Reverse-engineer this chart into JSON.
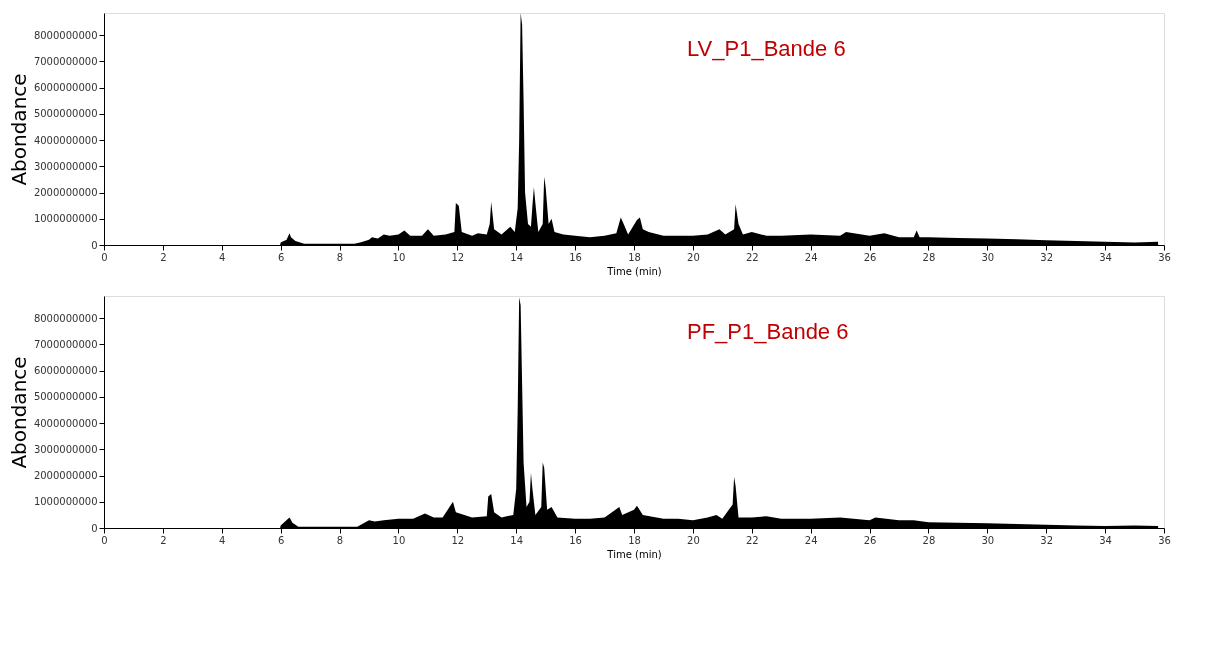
{
  "chart_data": [
    {
      "type": "area",
      "xlabel": "Time (min)",
      "ylabel": "Abondance",
      "xlim": [
        0,
        36
      ],
      "xticks": [
        0,
        2,
        4,
        6,
        8,
        10,
        12,
        14,
        16,
        18,
        20,
        22,
        24,
        26,
        28,
        30,
        32,
        34,
        36
      ],
      "ylim": [
        0,
        8850000000
      ],
      "yticks": [
        0,
        1000000000,
        2000000000,
        3000000000,
        4000000000,
        5000000000,
        6000000000,
        7000000000,
        8000000000
      ],
      "grid": false,
      "annotations": [
        "LV_P1_Bande 6"
      ],
      "series": [
        {
          "color": "#000000",
          "x": [
            0,
            5.98,
            6.0,
            6.2,
            6.3,
            6.35,
            6.5,
            6.8,
            7,
            8.5,
            8.7,
            9.0,
            9.1,
            9.3,
            9.5,
            9.7,
            10,
            10.2,
            10.4,
            10.8,
            11.0,
            11.2,
            11.6,
            11.9,
            11.95,
            12.05,
            12.15,
            12.5,
            12.7,
            13.0,
            13.1,
            13.15,
            13.25,
            13.5,
            13.8,
            13.95,
            14.05,
            14.1,
            14.15,
            14.2,
            14.25,
            14.3,
            14.4,
            14.5,
            14.55,
            14.6,
            14.65,
            14.75,
            14.9,
            14.95,
            15.0,
            15.1,
            15.2,
            15.3,
            15.6,
            16,
            16.5,
            17,
            17.4,
            17.55,
            17.65,
            17.8,
            18.1,
            18.2,
            18.3,
            18.5,
            19,
            19.5,
            20,
            20.5,
            20.9,
            21.1,
            21.4,
            21.45,
            21.55,
            21.7,
            22,
            22.5,
            23,
            24,
            25,
            25.2,
            26,
            26.5,
            27,
            27.5,
            27.6,
            27.7,
            28,
            29,
            30,
            31,
            32,
            33,
            34,
            35,
            35.8
          ],
          "values": [
            0,
            0,
            100000000,
            200000000,
            450000000,
            300000000,
            150000000,
            50000000,
            50000000,
            50000000,
            100000000,
            200000000,
            300000000,
            250000000,
            400000000,
            350000000,
            400000000,
            550000000,
            350000000,
            350000000,
            600000000,
            350000000,
            400000000,
            500000000,
            1600000000,
            1500000000,
            500000000,
            350000000,
            450000000,
            400000000,
            800000000,
            1650000000,
            600000000,
            400000000,
            700000000,
            500000000,
            1400000000,
            4000000000,
            8850000000,
            8400000000,
            5500000000,
            2000000000,
            800000000,
            700000000,
            1500000000,
            2200000000,
            1600000000,
            500000000,
            800000000,
            2600000000,
            2200000000,
            800000000,
            1000000000,
            500000000,
            400000000,
            350000000,
            300000000,
            350000000,
            450000000,
            1050000000,
            800000000,
            400000000,
            950000000,
            1050000000,
            600000000,
            500000000,
            350000000,
            350000000,
            350000000,
            400000000,
            600000000,
            400000000,
            600000000,
            1550000000,
            800000000,
            400000000,
            500000000,
            350000000,
            350000000,
            400000000,
            350000000,
            500000000,
            350000000,
            450000000,
            300000000,
            300000000,
            550000000,
            300000000,
            300000000,
            270000000,
            250000000,
            220000000,
            180000000,
            150000000,
            120000000,
            100000000,
            120000000
          ]
        }
      ]
    },
    {
      "type": "area",
      "xlabel": "Time (min)",
      "ylabel": "Abondance",
      "xlim": [
        0,
        36
      ],
      "xticks": [
        0,
        2,
        4,
        6,
        8,
        10,
        12,
        14,
        16,
        18,
        20,
        22,
        24,
        26,
        28,
        30,
        32,
        34,
        36
      ],
      "ylim": [
        0,
        8850000000
      ],
      "yticks": [
        0,
        1000000000,
        2000000000,
        3000000000,
        4000000000,
        5000000000,
        6000000000,
        7000000000,
        8000000000
      ],
      "grid": false,
      "annotations": [
        "PF_P1_Bande 6"
      ],
      "series": [
        {
          "color": "#000000",
          "x": [
            0,
            5.98,
            6.0,
            6.3,
            6.4,
            6.6,
            8.6,
            9.0,
            9.2,
            9.5,
            10,
            10.5,
            10.9,
            11.2,
            11.5,
            11.85,
            11.95,
            12.5,
            13,
            13.05,
            13.15,
            13.25,
            13.5,
            13.9,
            14.0,
            14.05,
            14.1,
            14.15,
            14.2,
            14.25,
            14.35,
            14.45,
            14.5,
            14.55,
            14.65,
            14.85,
            14.9,
            14.95,
            15.05,
            15.2,
            15.4,
            16,
            16.5,
            17,
            17.5,
            17.6,
            18,
            18.1,
            18.3,
            19,
            19.5,
            20,
            20.5,
            20.8,
            21,
            21.35,
            21.4,
            21.45,
            21.55,
            22,
            22.5,
            23,
            24,
            25,
            26,
            26.2,
            27,
            27.5,
            28,
            29,
            30,
            31,
            32,
            33,
            34,
            35,
            35.8
          ],
          "values": [
            0,
            0,
            100000000,
            400000000,
            200000000,
            50000000,
            50000000,
            300000000,
            250000000,
            300000000,
            350000000,
            350000000,
            550000000,
            400000000,
            400000000,
            1000000000,
            600000000,
            400000000,
            450000000,
            1200000000,
            1300000000,
            600000000,
            400000000,
            500000000,
            1500000000,
            4500000000,
            8800000000,
            8500000000,
            5500000000,
            2500000000,
            800000000,
            1000000000,
            2100000000,
            1500000000,
            500000000,
            800000000,
            2500000000,
            2300000000,
            700000000,
            800000000,
            400000000,
            350000000,
            350000000,
            400000000,
            800000000,
            500000000,
            700000000,
            850000000,
            500000000,
            350000000,
            350000000,
            300000000,
            400000000,
            500000000,
            350000000,
            900000000,
            1950000000,
            1600000000,
            400000000,
            400000000,
            450000000,
            350000000,
            350000000,
            400000000,
            300000000,
            400000000,
            300000000,
            300000000,
            220000000,
            200000000,
            180000000,
            150000000,
            120000000,
            100000000,
            80000000,
            100000000,
            80000000
          ]
        }
      ]
    }
  ]
}
